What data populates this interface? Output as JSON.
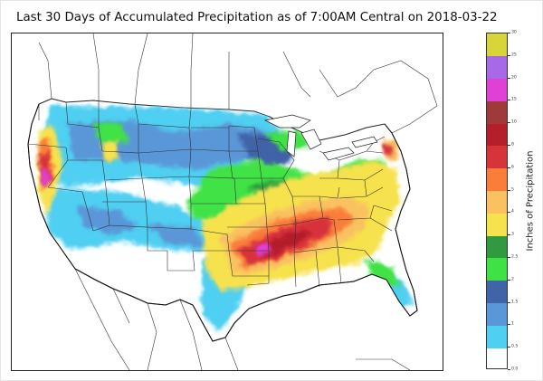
{
  "title": "Last 30 Days of Accumulated Precipitation as of 7:00AM Central on 2018-03-22",
  "colorbar": {
    "label": "Inches of Precipitation",
    "ticks": [
      "0.0",
      "0.5",
      "1",
      "1.5",
      "2",
      "2.5",
      "3",
      "4",
      "5",
      "6",
      "8",
      "10",
      "15",
      "20",
      "25",
      "30"
    ],
    "colors": [
      "#ffffff",
      "#4fcff1",
      "#5a97d8",
      "#3f64a8",
      "#3fe244",
      "#2f9a3f",
      "#f6e24d",
      "#f9c160",
      "#fa7e3a",
      "#d7333a",
      "#b51f2b",
      "#9e3a3a",
      "#e040d6",
      "#a869e8",
      "#d7d53a"
    ]
  },
  "chart_data": {
    "type": "heatmap",
    "title": "Last 30 Days of Accumulated Precipitation as of 7:00AM Central on 2018-03-22",
    "colorbar_label": "Inches of Precipitation",
    "colorbar_levels": [
      0.0,
      0.5,
      1,
      1.5,
      2,
      2.5,
      3,
      4,
      5,
      6,
      8,
      10,
      15,
      20,
      25,
      30
    ],
    "region": "Contiguous United States",
    "units": "inches"
  }
}
